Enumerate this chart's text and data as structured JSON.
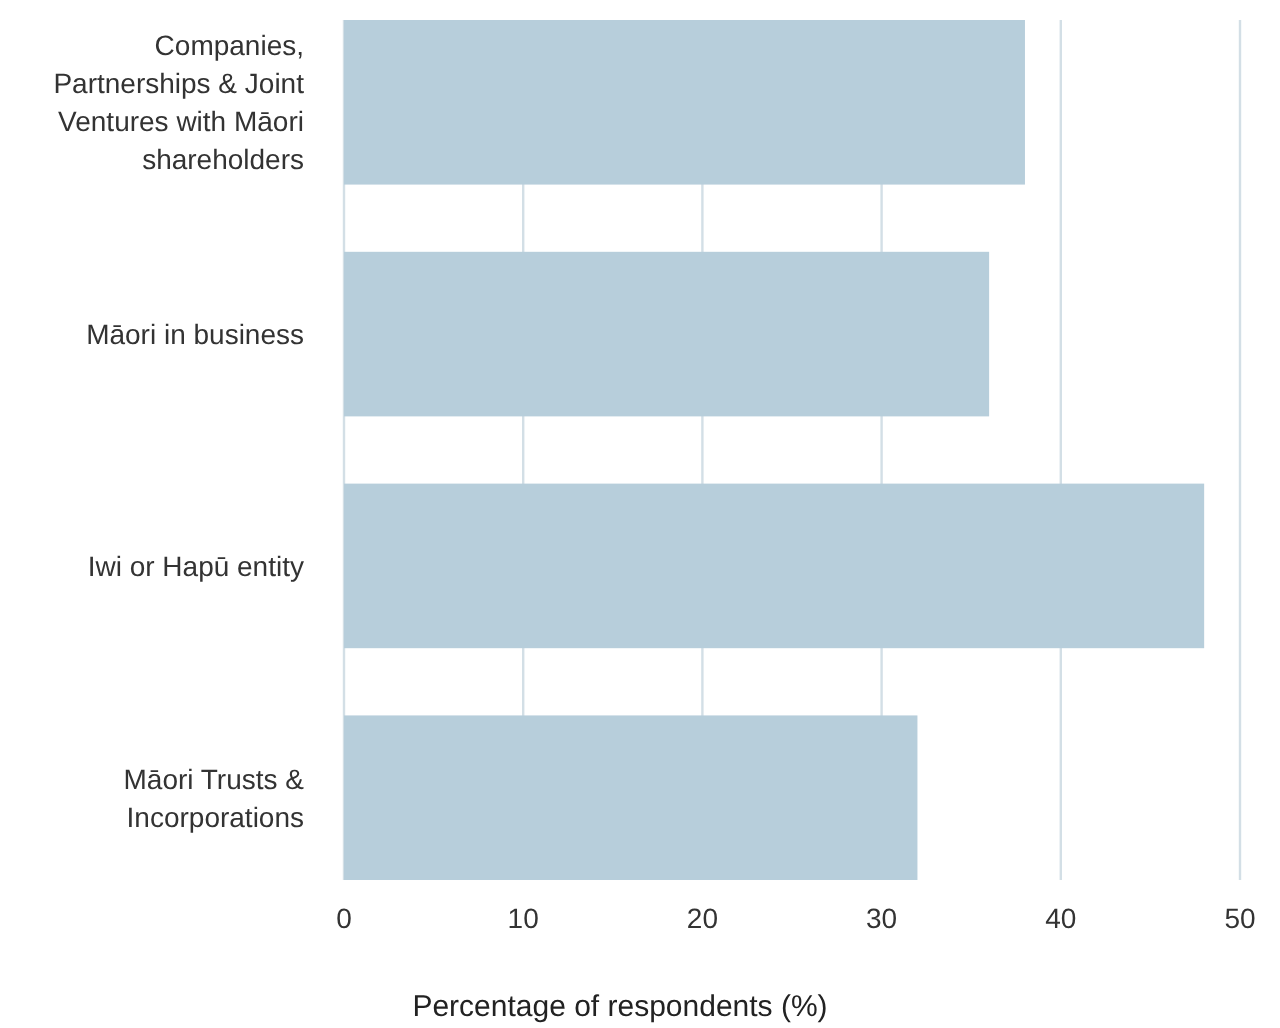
{
  "chart_data": {
    "type": "bar",
    "orientation": "horizontal",
    "categories": [
      "Companies, Partnerships & Joint Ventures with Māori shareholders",
      "Māori in business",
      "Iwi or Hapū entity",
      "Māori Trusts & Incorporations"
    ],
    "values": [
      38,
      36,
      48,
      32
    ],
    "color": "#b7cedb",
    "xlim": [
      0,
      50
    ],
    "xticks": [
      0,
      10,
      20,
      30,
      40,
      50
    ],
    "grid": "x",
    "xlabel": "Percentage of respondents (%)"
  }
}
